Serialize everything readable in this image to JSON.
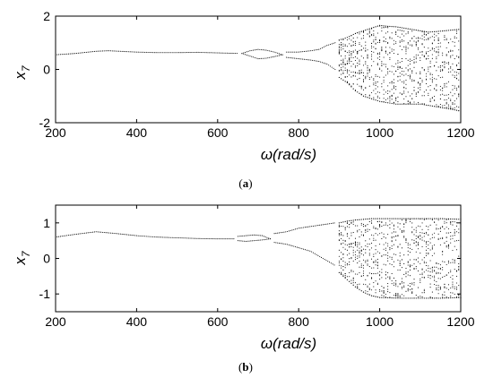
{
  "chart_data": [
    {
      "type": "scatter",
      "panel": "(a)",
      "panel_letter": "a",
      "xlabel": "ω(rad/s)",
      "ylabel_main": "x",
      "ylabel_sub": "7",
      "xlim": [
        200,
        1200
      ],
      "ylim": [
        -2,
        2
      ],
      "xticks": [
        200,
        400,
        600,
        800,
        1000,
        1200
      ],
      "yticks": [
        -2,
        0,
        2
      ],
      "grid": false,
      "series": [
        {
          "segments": [
            {
              "x": [
                200,
                250,
                300,
                330,
                400,
                450,
                500,
                550,
                600,
                650
              ],
              "y": [
                [
                  0.55
                ],
                [
                  0.6
                ],
                [
                  0.68
                ],
                [
                  0.7
                ],
                [
                  0.65
                ],
                [
                  0.63
                ],
                [
                  0.63
                ],
                [
                  0.64
                ],
                [
                  0.62
                ],
                [
                  0.6
                ]
              ]
            },
            {
              "x": [
                660,
                680,
                700,
                720,
                740,
                760
              ],
              "y": [
                [
                  0.6
                ],
                [
                  0.5,
                  0.7
                ],
                [
                  0.4,
                  0.75
                ],
                [
                  0.42,
                  0.72
                ],
                [
                  0.48,
                  0.65
                ],
                [
                  0.55
                ]
              ]
            },
            {
              "x": [
                770,
                800,
                830,
                850,
                870,
                890
              ],
              "y": [
                [
                  0.45,
                  0.65
                ],
                [
                  0.4,
                  0.65
                ],
                [
                  0.35,
                  0.7
                ],
                [
                  0.3,
                  0.75
                ],
                [
                  0.2,
                  0.9
                ],
                [
                  0.0,
                  1.0
                ]
              ]
            },
            {
              "x": [
                900,
                920,
                940,
                960,
                980,
                1000,
                1020,
                1040,
                1060,
                1080,
                1100,
                1120,
                1140,
                1160,
                1180,
                1195
              ],
              "ymin": [
                -0.3,
                -0.5,
                -0.8,
                -1.0,
                -1.1,
                -1.2,
                -1.25,
                -1.3,
                -1.3,
                -1.3,
                -1.3,
                -1.35,
                -1.4,
                -1.45,
                -1.5,
                -1.55
              ],
              "ymax": [
                1.1,
                1.2,
                1.35,
                1.45,
                1.55,
                1.65,
                1.62,
                1.6,
                1.55,
                1.5,
                1.45,
                1.4,
                1.42,
                1.45,
                1.48,
                1.5
              ]
            }
          ]
        }
      ]
    },
    {
      "type": "scatter",
      "panel": "(b)",
      "panel_letter": "b",
      "xlabel": "ω(rad/s)",
      "ylabel_main": "x",
      "ylabel_sub": "7",
      "xlim": [
        200,
        1200
      ],
      "ylim": [
        -1.5,
        1.5
      ],
      "xticks": [
        200,
        400,
        600,
        800,
        1000,
        1200
      ],
      "yticks": [
        -1,
        0,
        1
      ],
      "grid": false,
      "series": [
        {
          "segments": [
            {
              "x": [
                200,
                250,
                300,
                350,
                400,
                450,
                500,
                550,
                600,
                640
              ],
              "y": [
                [
                  0.6
                ],
                [
                  0.68
                ],
                [
                  0.75
                ],
                [
                  0.7
                ],
                [
                  0.64
                ],
                [
                  0.6
                ],
                [
                  0.58
                ],
                [
                  0.56
                ],
                [
                  0.55
                ],
                [
                  0.55
                ]
              ]
            },
            {
              "x": [
                650,
                670,
                690,
                710,
                730
              ],
              "y": [
                [
                  0.5,
                  0.62
                ],
                [
                  0.48,
                  0.64
                ],
                [
                  0.5,
                  0.66
                ],
                [
                  0.52,
                  0.64
                ],
                [
                  0.55
                ]
              ]
            },
            {
              "x": [
                740,
                770,
                800,
                830,
                860,
                890
              ],
              "y": [
                [
                  0.45,
                  0.7
                ],
                [
                  0.4,
                  0.75
                ],
                [
                  0.3,
                  0.85
                ],
                [
                  0.2,
                  0.9
                ],
                [
                  0.0,
                  0.95
                ],
                [
                  -0.2,
                  1.0
                ]
              ]
            },
            {
              "x": [
                900,
                920,
                940,
                960,
                980,
                1000,
                1050,
                1100,
                1150,
                1200
              ],
              "ymin": [
                -0.4,
                -0.6,
                -0.8,
                -0.95,
                -1.05,
                -1.1,
                -1.12,
                -1.12,
                -1.12,
                -1.1
              ],
              "ymax": [
                1.0,
                1.05,
                1.08,
                1.1,
                1.12,
                1.12,
                1.12,
                1.12,
                1.12,
                1.1
              ]
            }
          ]
        }
      ]
    }
  ]
}
